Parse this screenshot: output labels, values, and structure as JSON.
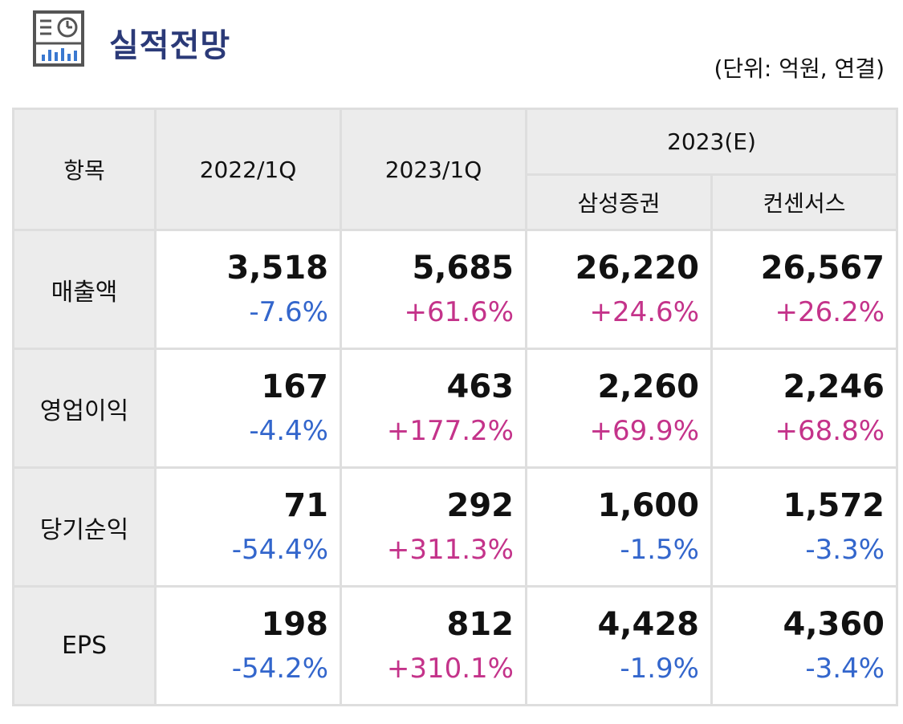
{
  "header": {
    "title": "실적전망",
    "unit_note": "(단위: 억원, 연결)",
    "icon": "report-chart-icon"
  },
  "table": {
    "headers": {
      "item": "항목",
      "col_2022q1": "2022/1Q",
      "col_2023q1": "2023/1Q",
      "col_2023e": "2023(E)",
      "sub_samsung": "삼성증권",
      "sub_consensus": "컨센서스"
    },
    "rows": [
      {
        "label": "매출액",
        "values": [
          "3,518",
          "5,685",
          "26,220",
          "26,567"
        ],
        "changes": [
          "-7.6%",
          "+61.6%",
          "+24.6%",
          "+26.2%"
        ]
      },
      {
        "label": "영업이익",
        "values": [
          "167",
          "463",
          "2,260",
          "2,246"
        ],
        "changes": [
          "-4.4%",
          "+177.2%",
          "+69.9%",
          "+68.8%"
        ]
      },
      {
        "label": "당기순익",
        "values": [
          "71",
          "292",
          "1,600",
          "1,572"
        ],
        "changes": [
          "-54.4%",
          "+311.3%",
          "-1.5%",
          "-3.3%"
        ]
      },
      {
        "label": "EPS",
        "values": [
          "198",
          "812",
          "4,428",
          "4,360"
        ],
        "changes": [
          "-54.2%",
          "+310.1%",
          "-1.9%",
          "-3.4%"
        ]
      }
    ]
  },
  "colors": {
    "title": "#2b3a78",
    "positive": "#c4338a",
    "negative": "#3366cc",
    "header_bg": "#ececec"
  }
}
